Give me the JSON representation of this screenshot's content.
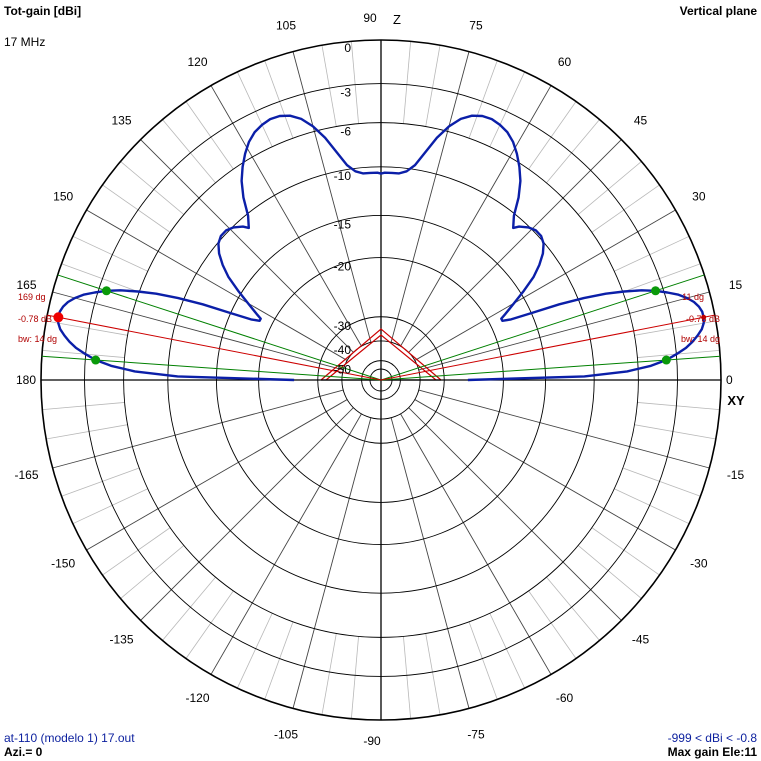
{
  "header": {
    "title": "Tot-gain [dBi]",
    "frequency": "17 MHz",
    "plane": "Vertical plane"
  },
  "footer": {
    "file": "at-110 (modelo 1) 17.out",
    "azimuth": "Azi.= 0",
    "range": "-999 < dBi < -0.8",
    "max_gain": "Max gain Ele:11"
  },
  "colors": {
    "pattern": "#0b1fa8",
    "beamwidth_lines": "#008000",
    "max_lines": "#cc0000",
    "grid": "#000000"
  },
  "chart_data": {
    "type": "polar",
    "angle_unit": "degrees",
    "axis_labels": {
      "zenith": "Z",
      "horizon": "XY"
    },
    "angle_tick_labels": [
      {
        "angle": 0,
        "label": "0"
      },
      {
        "angle": 15,
        "label": "15"
      },
      {
        "angle": 30,
        "label": "30"
      },
      {
        "angle": 45,
        "label": "45"
      },
      {
        "angle": 60,
        "label": "60"
      },
      {
        "angle": 75,
        "label": "75"
      },
      {
        "angle": 90,
        "label": "90"
      },
      {
        "angle": 105,
        "label": "105"
      },
      {
        "angle": 120,
        "label": "120"
      },
      {
        "angle": 135,
        "label": "135"
      },
      {
        "angle": 150,
        "label": "150"
      },
      {
        "angle": 165,
        "label": "165"
      },
      {
        "angle": 180,
        "label": "180"
      },
      {
        "angle": -165,
        "label": "-165"
      },
      {
        "angle": -150,
        "label": "-150"
      },
      {
        "angle": -135,
        "label": "-135"
      },
      {
        "angle": -120,
        "label": "-120"
      },
      {
        "angle": -105,
        "label": "-105"
      },
      {
        "angle": -90,
        "label": "-90"
      },
      {
        "angle": -75,
        "label": "-75"
      },
      {
        "angle": -60,
        "label": "-60"
      },
      {
        "angle": -45,
        "label": "-45"
      },
      {
        "angle": -30,
        "label": "-30"
      },
      {
        "angle": -15,
        "label": "-15"
      }
    ],
    "gain_rings_db": [
      {
        "value": 0,
        "label": "0"
      },
      {
        "value": -3,
        "label": "-3"
      },
      {
        "value": -6,
        "label": "-6"
      },
      {
        "value": -10,
        "label": "-10"
      },
      {
        "value": -15,
        "label": "-15"
      },
      {
        "value": -20,
        "label": "-20"
      },
      {
        "value": -30,
        "label": "-30"
      },
      {
        "value": -40,
        "label": "-40"
      },
      {
        "value": -50,
        "label": "-50"
      }
    ],
    "pattern_right": [
      [
        0,
        -26.0
      ],
      [
        1,
        -11.0
      ],
      [
        2,
        -7.0
      ],
      [
        3,
        -5.0
      ],
      [
        4,
        -3.8
      ],
      [
        5,
        -3.0
      ],
      [
        6,
        -2.3
      ],
      [
        7,
        -1.8
      ],
      [
        8,
        -1.4
      ],
      [
        9,
        -1.05
      ],
      [
        10,
        -0.85
      ],
      [
        11,
        -0.78
      ],
      [
        12,
        -0.8
      ],
      [
        13,
        -0.95
      ],
      [
        14,
        -1.2
      ],
      [
        15,
        -1.6
      ],
      [
        16,
        -2.1
      ],
      [
        17,
        -2.8
      ],
      [
        18,
        -3.6
      ],
      [
        19,
        -4.6
      ],
      [
        20,
        -5.9
      ],
      [
        21,
        -7.5
      ],
      [
        22,
        -9.5
      ],
      [
        23,
        -12.0
      ],
      [
        24,
        -15.0
      ],
      [
        25,
        -17.5
      ],
      [
        26,
        -18.5
      ],
      [
        27,
        -18.5
      ],
      [
        28,
        -17.8
      ],
      [
        30,
        -16.3
      ],
      [
        32,
        -14.6
      ],
      [
        34,
        -13.0
      ],
      [
        36,
        -11.8
      ],
      [
        38,
        -10.8
      ],
      [
        40,
        -10.1
      ],
      [
        42,
        -9.8
      ],
      [
        44,
        -9.8
      ],
      [
        46,
        -10.1
      ],
      [
        48,
        -10.7
      ],
      [
        49,
        -11.2
      ],
      [
        51,
        -10.2
      ],
      [
        53,
        -8.6
      ],
      [
        55,
        -7.3
      ],
      [
        57,
        -6.3
      ],
      [
        59,
        -5.5
      ],
      [
        61,
        -4.85
      ],
      [
        63,
        -4.4
      ],
      [
        65,
        -4.15
      ],
      [
        67,
        -4.0
      ],
      [
        69,
        -4.05
      ],
      [
        71,
        -4.3
      ],
      [
        73,
        -4.8
      ],
      [
        75,
        -5.6
      ],
      [
        77,
        -6.8
      ],
      [
        79,
        -8.3
      ],
      [
        81,
        -9.6
      ],
      [
        83,
        -10.3
      ],
      [
        85,
        -10.6
      ],
      [
        87,
        -10.6
      ],
      [
        89,
        -10.6
      ],
      [
        90,
        -10.7
      ]
    ],
    "max_gain": {
      "value_label": "-0.78 dB",
      "right_angle_label": "11 dg",
      "left_angle_label": "169 dg",
      "right_angle": 11,
      "left_angle": 169
    },
    "beamwidth": {
      "label": "bw: 14 dg",
      "right_lo": 4,
      "right_hi": 18,
      "left_lo": 162,
      "left_hi": 176
    }
  }
}
